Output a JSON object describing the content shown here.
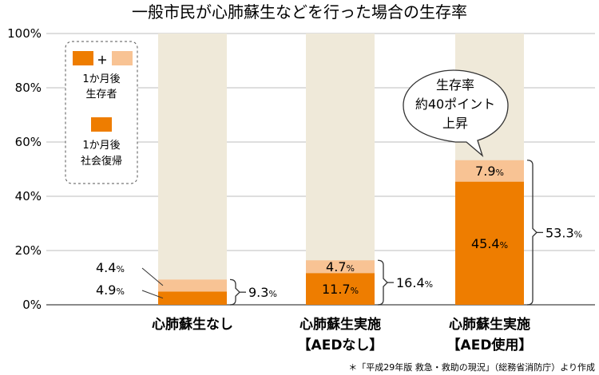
{
  "title": "一般市民が心肺蘇生などを行った場合の生存率",
  "source": "＊「平成29年版 救急・救助の現況」（総務省消防庁）より作成",
  "colors": {
    "survival": "#f8c394",
    "social": "#ee7d00",
    "track": "#efe9d9",
    "grid": "#bdbdbd"
  },
  "legend": {
    "survival_plus": "＋",
    "survival_label": [
      "1か月後",
      "生存者"
    ],
    "social_label": [
      "1か月後",
      "社会復帰"
    ]
  },
  "callout": {
    "lines": [
      "生存率",
      "約40ポイント",
      "上昇"
    ]
  },
  "chart_data": {
    "type": "bar",
    "stacked": true,
    "yticks": [
      "0%",
      "20%",
      "40%",
      "60%",
      "80%",
      "100%"
    ],
    "ylim": [
      0,
      100
    ],
    "categories": [
      [
        "心肺蘇生なし"
      ],
      [
        "心肺蘇生実施",
        "【AEDなし】"
      ],
      [
        "心肺蘇生実施",
        "【AED使用】"
      ]
    ],
    "series": [
      {
        "values": [
          4.9,
          11.7,
          45.4
        ]
      },
      {
        "values": [
          4.4,
          4.7,
          7.9
        ]
      }
    ],
    "totals": [
      9.3,
      16.4,
      53.3
    ],
    "segment_labels": {
      "social": [
        "4.9",
        "11.7",
        "45.4"
      ],
      "survival": [
        "4.4",
        "4.7",
        "7.9"
      ],
      "totals": [
        "9.3",
        "16.4",
        "53.3"
      ],
      "unit": "%"
    }
  }
}
